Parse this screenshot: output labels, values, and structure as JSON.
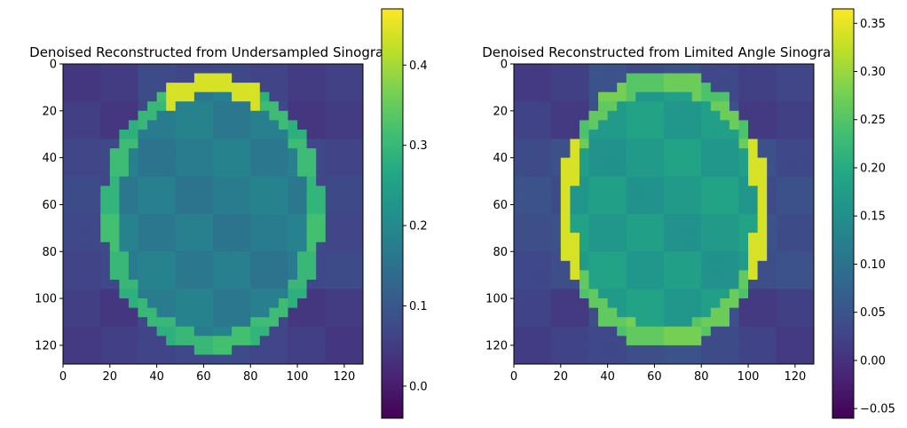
{
  "chart_data": [
    {
      "type": "heatmap",
      "title": "Denoised Reconstructed from Undersampled Sinogram",
      "xlabel": "",
      "ylabel": "",
      "colormap": "viridis",
      "grid": false,
      "xlim": [
        0,
        128
      ],
      "ylim": [
        128,
        0
      ],
      "x_ticks": [
        0,
        20,
        40,
        60,
        80,
        100,
        120
      ],
      "y_ticks": [
        0,
        20,
        40,
        60,
        80,
        100,
        120
      ],
      "colorbar": {
        "min": -0.04,
        "max": 0.47,
        "ticks": [
          0.0,
          0.1,
          0.2,
          0.3,
          0.4
        ],
        "tick_labels": [
          "0.0",
          "0.1",
          "0.2",
          "0.3",
          "0.4"
        ]
      },
      "ellipse": {
        "cx": 64,
        "cy": 64,
        "rx": 45,
        "ry": 57
      },
      "levels": {
        "background": 0.05,
        "edge": 0.07,
        "interior": 0.17,
        "ring": 0.3,
        "ring_top": 0.44
      }
    },
    {
      "type": "heatmap",
      "title": "Denoised Reconstructed from Limited Angle Sinogram",
      "xlabel": "",
      "ylabel": "",
      "colormap": "viridis",
      "grid": false,
      "xlim": [
        0,
        128
      ],
      "ylim": [
        128,
        0
      ],
      "x_ticks": [
        0,
        20,
        40,
        60,
        80,
        100,
        120
      ],
      "y_ticks": [
        0,
        20,
        40,
        60,
        80,
        100,
        120
      ],
      "colorbar": {
        "min": -0.06,
        "max": 0.365,
        "ticks": [
          -0.05,
          0.0,
          0.05,
          0.1,
          0.15,
          0.2,
          0.25,
          0.3,
          0.35
        ],
        "tick_labels": [
          "−0.05",
          "0.00",
          "0.05",
          "0.10",
          "0.15",
          "0.20",
          "0.25",
          "0.30",
          "0.35"
        ]
      },
      "ellipse": {
        "cx": 64,
        "cy": 62,
        "rx": 43,
        "ry": 57
      },
      "levels": {
        "background": 0.02,
        "edge": 0.04,
        "interior": 0.17,
        "ring": 0.26,
        "ring_side": 0.34
      }
    }
  ]
}
